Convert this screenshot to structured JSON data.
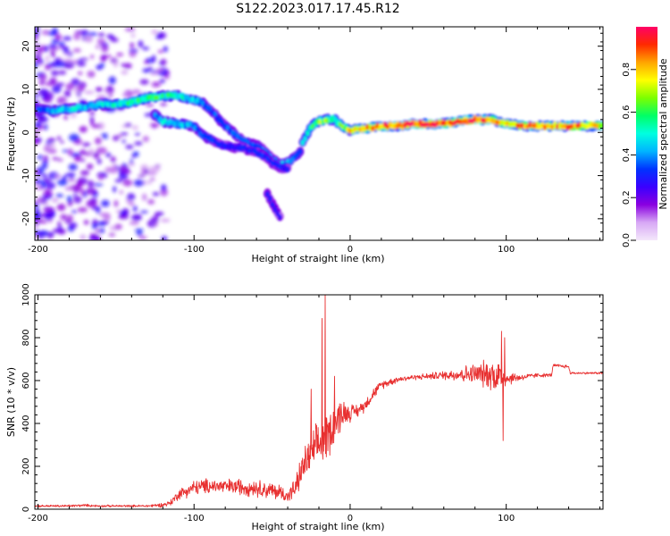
{
  "title": "S122.2023.017.17.45.R12",
  "colorbar": {
    "label": "Normalized spectral amplitude",
    "ticks": [
      "0.0",
      "0.2",
      "0.4",
      "0.6",
      "0.8"
    ],
    "tick_values": [
      0.0,
      0.2,
      0.4,
      0.6,
      0.8
    ],
    "range": [
      0,
      1
    ],
    "colormap": [
      "#f4e8fb",
      "#d7a8f5",
      "#8a00e0",
      "#3a00ff",
      "#0033ff",
      "#00b4ff",
      "#00ffe0",
      "#00ff66",
      "#7cff00",
      "#ffff00",
      "#ffa500",
      "#ff2a00",
      "#ff0066"
    ]
  },
  "chart_data": [
    {
      "type": "heatmap",
      "xlabel": "Height of straight line (km)",
      "ylabel": "Frequency (Hz)",
      "xlim": [
        -202,
        162
      ],
      "ylim": [
        -25,
        24.5
      ],
      "xticks": [
        -200,
        -100,
        0,
        100
      ],
      "xtick_labels": [
        "-200",
        "-100",
        "0",
        "100"
      ],
      "yticks": [
        -20,
        -10,
        0,
        10,
        20
      ],
      "ytick_labels": [
        "-20",
        "-10",
        "0",
        "10",
        "20"
      ],
      "ridges": [
        {
          "name": "upper",
          "x": [
            -200,
            -190,
            -180,
            -170,
            -160,
            -150,
            -140,
            -130,
            -120,
            -110,
            -100,
            -95,
            -90,
            -85,
            -80,
            -75,
            -70,
            -65,
            -60,
            -55,
            -50,
            -45,
            -40,
            -35,
            -32,
            -30,
            -25,
            -20,
            -15,
            -10,
            -5,
            0,
            10,
            20,
            30,
            40,
            50,
            60,
            70,
            80,
            90,
            100,
            110,
            120,
            130,
            140,
            150,
            162
          ],
          "y": [
            5.5,
            5,
            5.5,
            6,
            6.5,
            6.5,
            7,
            8,
            8.5,
            8.5,
            7.5,
            7,
            5.5,
            3.5,
            1.5,
            0,
            -1.5,
            -2.5,
            -3,
            -4,
            -6,
            -7.5,
            -7,
            -5.5,
            -4.5,
            -2,
            1.5,
            2.5,
            3,
            3,
            1.5,
            0.5,
            1,
            1.5,
            1.5,
            2,
            2,
            2,
            2.5,
            3,
            3,
            2,
            1.5,
            1.5,
            1.5,
            1.5,
            1.5,
            1.5
          ],
          "amp": [
            0.35,
            0.4,
            0.45,
            0.45,
            0.45,
            0.5,
            0.55,
            0.6,
            0.55,
            0.5,
            0.45,
            0.4,
            0.35,
            0.35,
            0.35,
            0.35,
            0.35,
            0.35,
            0.35,
            0.35,
            0.35,
            0.4,
            0.4,
            0.35,
            0.35,
            0.45,
            0.55,
            0.65,
            0.65,
            0.55,
            0.6,
            0.75,
            0.8,
            0.85,
            0.9,
            0.95,
            0.95,
            0.9,
            0.9,
            0.9,
            0.85,
            0.8,
            0.85,
            0.85,
            0.85,
            0.85,
            0.8,
            0.75
          ]
        },
        {
          "name": "lower",
          "x": [
            -125,
            -120,
            -110,
            -100,
            -95,
            -90,
            -85,
            -80,
            -75,
            -70,
            -65,
            -60,
            -55,
            -50,
            -45,
            -40
          ],
          "y": [
            4,
            2.5,
            2,
            1.5,
            -0.5,
            -1.5,
            -2.5,
            -3,
            -3.5,
            -3.5,
            -4,
            -4.5,
            -5.5,
            -7,
            -8,
            -8.5
          ],
          "amp": [
            0.4,
            0.45,
            0.45,
            0.4,
            0.35,
            0.35,
            0.3,
            0.3,
            0.3,
            0.3,
            0.3,
            0.3,
            0.3,
            0.3,
            0.3,
            0.3
          ]
        },
        {
          "name": "tail",
          "x": [
            -53,
            -50,
            -47,
            -44
          ],
          "y": [
            -14,
            -16.5,
            -18.5,
            -20
          ],
          "amp": [
            0.3,
            0.3,
            0.25,
            0.25
          ]
        }
      ]
    },
    {
      "type": "line",
      "xlabel": "Height of straight line (km)",
      "ylabel": "SNR (10 * v/v)",
      "xlim": [
        -202,
        162
      ],
      "ylim": [
        0,
        1000
      ],
      "xticks": [
        -200,
        -100,
        0,
        100
      ],
      "xtick_labels": [
        "-200",
        "-100",
        "0",
        "100"
      ],
      "yticks": [
        0,
        200,
        400,
        600,
        800,
        1000
      ],
      "ytick_labels": [
        "0",
        "200",
        "400",
        "600",
        "800",
        "1000"
      ],
      "color": "#e83030",
      "envelope": {
        "x": [
          -202,
          -190,
          -180,
          -170,
          -160,
          -150,
          -140,
          -130,
          -120,
          -115,
          -110,
          -100,
          -90,
          -80,
          -70,
          -60,
          -50,
          -45,
          -40,
          -35,
          -30,
          -25,
          -20,
          -15,
          -10,
          -5,
          0,
          5,
          10,
          15,
          20,
          30,
          40,
          50,
          60,
          70,
          80,
          90,
          95,
          100,
          110,
          120,
          129,
          130,
          140,
          141,
          162
        ],
        "mean": [
          15,
          15,
          15,
          18,
          15,
          15,
          15,
          15,
          20,
          30,
          70,
          100,
          110,
          105,
          105,
          100,
          85,
          80,
          60,
          100,
          200,
          260,
          300,
          340,
          400,
          450,
          450,
          460,
          490,
          540,
          580,
          605,
          615,
          620,
          625,
          630,
          630,
          630,
          620,
          610,
          615,
          625,
          625,
          670,
          665,
          635,
          635
        ],
        "noise": [
          5,
          5,
          6,
          6,
          5,
          5,
          5,
          6,
          10,
          15,
          25,
          35,
          35,
          35,
          40,
          40,
          40,
          40,
          30,
          50,
          80,
          90,
          110,
          110,
          100,
          70,
          40,
          30,
          30,
          25,
          20,
          15,
          12,
          15,
          20,
          35,
          50,
          70,
          90,
          35,
          15,
          10,
          8,
          8,
          8,
          5,
          5
        ]
      },
      "peaks": [
        {
          "x": -16,
          "y": 1000
        },
        {
          "x": -18,
          "y": 890
        },
        {
          "x": 97,
          "y": 830
        },
        {
          "x": 99,
          "y": 800
        },
        {
          "x": 98,
          "y": 320
        },
        {
          "x": -25,
          "y": 560
        },
        {
          "x": -10,
          "y": 620
        }
      ]
    }
  ]
}
